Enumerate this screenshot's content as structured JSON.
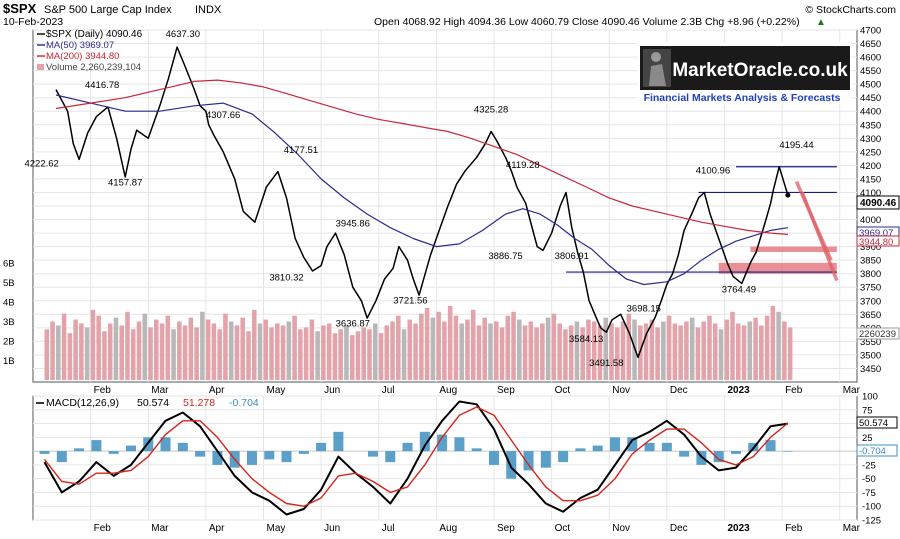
{
  "header": {
    "symbol": "$SPX",
    "name": "S&P 500 Large Cap Index",
    "exchange": "INDX",
    "date": "10-Feb-2023",
    "ohlc_text": "Open 4068.92  High 4094.36  Low 4060.79  Close 4090.46  Volume 2.3B  Chg +8.96 (+0.22%)",
    "arrow": "▲",
    "copyright": "© StockCharts.com"
  },
  "logo": {
    "name": "MarketOracle.co.uk",
    "tagline": "Financial Markets Analysis & Forecasts"
  },
  "colors": {
    "price": "#000000",
    "ma50": "#2b2b8c",
    "ma200": "#c8283c",
    "volume": "#e2a4aa",
    "volume_up": "#b8b8b8",
    "macd_line": "#000000",
    "macd_signal": "#d4251f",
    "macd_hist": "#3d8fc0",
    "zone_fill": "#e06068",
    "levels": "#1a1a8c",
    "grid": "#e6e6e6"
  },
  "chart_data": [
    {
      "type": "line",
      "panel": "price",
      "title": "$SPX (Daily) 4090.46",
      "legend": [
        {
          "key": "price",
          "text": "$SPX (Daily) 4090.46"
        },
        {
          "key": "ma50",
          "text": "MA(50) 3969.07"
        },
        {
          "key": "ma200",
          "text": "MA(200) 3944.80"
        },
        {
          "key": "volume",
          "text": "Volume 2,260,239,104"
        }
      ],
      "legend_position": "top-left",
      "x_labels": [
        "Feb",
        "Mar",
        "Apr",
        "May",
        "Jun",
        "Jul",
        "Aug",
        "Sep",
        "Oct",
        "Nov",
        "Dec",
        "2023",
        "Feb",
        "Mar"
      ],
      "x_label_month_index": [
        1,
        2,
        3,
        4,
        5,
        6,
        7,
        8,
        9,
        10,
        11,
        12,
        13,
        14
      ],
      "y_range": [
        3400,
        4700
      ],
      "y_ticks": [
        3450,
        3500,
        3550,
        3600,
        3650,
        3700,
        3750,
        3800,
        3850,
        3900,
        3950,
        4000,
        4050,
        4100,
        4150,
        4200,
        4250,
        4300,
        4350,
        4400,
        4450,
        4500,
        4550,
        4600,
        4650,
        4700
      ],
      "volume_ticks": [
        "1B",
        "2B",
        "3B",
        "4B",
        "5B",
        "6B"
      ],
      "last_values": {
        "close": "4090.46",
        "ma50": "3969.07",
        "ma200": "3944.80",
        "volume": "2260239"
      },
      "grid": true,
      "series": [
        {
          "name": "$SPX (Daily)",
          "key": "price",
          "x": [
            0.4,
            0.6,
            0.7,
            0.8,
            0.95,
            1.1,
            1.3,
            1.45,
            1.6,
            1.7,
            1.8,
            2.0,
            2.2,
            2.35,
            2.5,
            2.65,
            2.8,
            2.9,
            3.0,
            3.05,
            3.15,
            3.3,
            3.5,
            3.65,
            3.85,
            4.05,
            4.25,
            4.4,
            4.55,
            4.7,
            4.85,
            5.0,
            5.1,
            5.25,
            5.4,
            5.55,
            5.7,
            5.8,
            5.95,
            6.1,
            6.25,
            6.35,
            6.5,
            6.6,
            6.7,
            6.9,
            7.05,
            7.2,
            7.35,
            7.5,
            7.7,
            7.85,
            7.95,
            8.05,
            8.2,
            8.3,
            8.4,
            8.55,
            8.65,
            8.75,
            8.85,
            9.0,
            9.15,
            9.25,
            9.35,
            9.45,
            9.55,
            9.65,
            9.75,
            9.85,
            9.95,
            10.05,
            10.2,
            10.35,
            10.5,
            10.65,
            10.8,
            10.9,
            11.0,
            11.1,
            11.2,
            11.3,
            11.45,
            11.55,
            11.65,
            11.75,
            11.85,
            11.95,
            12.05,
            12.15,
            12.3,
            12.45,
            12.55,
            12.65,
            12.72,
            12.8,
            12.85,
            12.95,
            13.1
          ],
          "y": [
            4480,
            4400,
            4280,
            4222,
            4320,
            4380,
            4416,
            4300,
            4157,
            4260,
            4330,
            4300,
            4420,
            4520,
            4637,
            4560,
            4480,
            4420,
            4400,
            4350,
            4307,
            4250,
            4150,
            4030,
            3990,
            4120,
            4177,
            4080,
            3930,
            3860,
            3810,
            3830,
            3900,
            3950,
            3870,
            3750,
            3700,
            3636,
            3700,
            3780,
            3820,
            3900,
            3850,
            3780,
            3721,
            3870,
            3960,
            4050,
            4130,
            4180,
            4230,
            4280,
            4325,
            4290,
            4230,
            4180,
            4119,
            4060,
            3980,
            3900,
            3886,
            3950,
            4050,
            4100,
            3970,
            3880,
            3806,
            3700,
            3650,
            3600,
            3584,
            3630,
            3650,
            3580,
            3491,
            3580,
            3640,
            3698,
            3760,
            3800,
            3870,
            3960,
            4030,
            4080,
            4100,
            4020,
            3960,
            3900,
            3840,
            3790,
            3764,
            3840,
            3880,
            3950,
            4000,
            4060,
            4110,
            4195,
            4090
          ]
        },
        {
          "name": "MA(50)",
          "key": "ma50",
          "x": [
            0.4,
            1.0,
            1.6,
            2.2,
            2.8,
            3.3,
            3.8,
            4.2,
            4.6,
            5.0,
            5.4,
            5.8,
            6.2,
            6.6,
            7.0,
            7.4,
            7.8,
            8.2,
            8.5,
            8.8,
            9.1,
            9.4,
            9.7,
            10.0,
            10.3,
            10.6,
            11.0,
            11.3,
            11.6,
            11.9,
            12.2,
            12.5,
            12.8,
            13.1
          ],
          "y": [
            4460,
            4430,
            4400,
            4400,
            4420,
            4430,
            4390,
            4320,
            4240,
            4150,
            4080,
            4020,
            3970,
            3930,
            3900,
            3910,
            3960,
            4020,
            4040,
            4020,
            3980,
            3930,
            3890,
            3830,
            3780,
            3760,
            3770,
            3800,
            3850,
            3890,
            3920,
            3940,
            3960,
            3970
          ]
        },
        {
          "name": "MA(200)",
          "key": "ma200",
          "x": [
            0.4,
            1.0,
            1.6,
            2.2,
            2.8,
            3.2,
            3.6,
            4.0,
            4.4,
            4.8,
            5.2,
            5.6,
            6.0,
            6.4,
            6.8,
            7.2,
            7.6,
            8.0,
            8.4,
            8.8,
            9.2,
            9.6,
            10.0,
            10.4,
            10.8,
            11.2,
            11.6,
            12.0,
            12.4,
            12.8,
            13.1
          ],
          "y": [
            4410,
            4430,
            4450,
            4480,
            4510,
            4515,
            4505,
            4490,
            4465,
            4440,
            4415,
            4390,
            4370,
            4355,
            4340,
            4325,
            4300,
            4270,
            4240,
            4200,
            4160,
            4120,
            4080,
            4050,
            4030,
            4010,
            3990,
            3975,
            3960,
            3950,
            3945
          ]
        }
      ],
      "volume_bars": {
        "month_start": 0.2,
        "month_end": 13.2,
        "count": 130,
        "levels_B": [
          2.6,
          3.0,
          2.8,
          3.4,
          2.4,
          3.1,
          2.9,
          2.7,
          3.6,
          3.3,
          2.5,
          2.9,
          3.2,
          2.8,
          3.5,
          2.6,
          3.0,
          3.4,
          2.7,
          3.1,
          2.9,
          3.3,
          2.6,
          3.0,
          2.8,
          3.2,
          2.7,
          3.5,
          3.1,
          2.9,
          2.6,
          3.4,
          3.0,
          2.8,
          3.2,
          2.5,
          3.6,
          2.9,
          3.1,
          2.7,
          2.9,
          2.8,
          3.0,
          3.3,
          2.6,
          2.7,
          3.1,
          2.5,
          2.8,
          2.9,
          2.4,
          2.6,
          2.8,
          2.3,
          2.5,
          2.7,
          2.6,
          2.9,
          2.4,
          2.8,
          3.0,
          3.3,
          2.6,
          3.1,
          2.9,
          3.4,
          3.7,
          3.2,
          3.5,
          3.0,
          3.8,
          3.3,
          2.9,
          3.1,
          3.6,
          2.8,
          3.2,
          2.9,
          3.0,
          2.7,
          3.3,
          3.5,
          3.1,
          2.8,
          3.0,
          2.7,
          2.9,
          3.2,
          3.4,
          2.9,
          2.6,
          2.8,
          3.0,
          2.7,
          3.1,
          3.0,
          2.8,
          3.2,
          2.9,
          2.7,
          3.0,
          3.4,
          3.1,
          2.8,
          2.9,
          3.1,
          2.7,
          3.0,
          3.3,
          2.9,
          2.8,
          3.0,
          3.2,
          2.7,
          3.0,
          3.3,
          2.9,
          2.6,
          3.1,
          3.5,
          2.9,
          2.8,
          3.0,
          3.2,
          2.8,
          3.3,
          3.8,
          3.5,
          3.0,
          2.7
        ]
      },
      "annotations": [
        {
          "text": "4637.30",
          "x": 2.6,
          "y": 4675
        },
        {
          "text": "4416.78",
          "x": 1.2,
          "y": 4485
        },
        {
          "text": "4222.62",
          "x": 0.15,
          "y": 4195
        },
        {
          "text": "4157.87",
          "x": 1.6,
          "y": 4125
        },
        {
          "text": "4307.66",
          "x": 3.3,
          "y": 4375
        },
        {
          "text": "4177.51",
          "x": 4.65,
          "y": 4245
        },
        {
          "text": "3945.86",
          "x": 5.55,
          "y": 3975
        },
        {
          "text": "3810.32",
          "x": 4.4,
          "y": 3775
        },
        {
          "text": "3636.87",
          "x": 5.55,
          "y": 3605
        },
        {
          "text": "3721.56",
          "x": 6.55,
          "y": 3690
        },
        {
          "text": "4325.28",
          "x": 7.95,
          "y": 4395
        },
        {
          "text": "4119.28",
          "x": 8.5,
          "y": 4190
        },
        {
          "text": "3886.75",
          "x": 8.2,
          "y": 3855
        },
        {
          "text": "3806.91",
          "x": 9.35,
          "y": 3855
        },
        {
          "text": "3584.13",
          "x": 9.6,
          "y": 3548
        },
        {
          "text": "3491.58",
          "x": 9.95,
          "y": 3460
        },
        {
          "text": "3698.15",
          "x": 10.6,
          "y": 3660
        },
        {
          "text": "4100.96",
          "x": 11.8,
          "y": 4170
        },
        {
          "text": "3764.49",
          "x": 12.25,
          "y": 3730
        },
        {
          "text": "4195.44",
          "x": 13.25,
          "y": 4265
        }
      ],
      "levels": [
        {
          "from": 12.2,
          "to": 13.95,
          "y": 4195
        },
        {
          "from": 11.55,
          "to": 13.95,
          "y": 4100
        },
        {
          "from": 9.25,
          "to": 13.95,
          "y": 3806
        }
      ],
      "zones": [
        {
          "from": 12.45,
          "to": 13.95,
          "y1": 3880,
          "y2": 3900
        },
        {
          "from": 11.9,
          "to": 13.95,
          "y1": 3800,
          "y2": 3840
        }
      ],
      "arrows": [
        {
          "x1": 13.25,
          "y1": 4140,
          "x2": 13.85,
          "y2": 3850
        },
        {
          "x1": 13.35,
          "y1": 4100,
          "x2": 13.95,
          "y2": 3775
        }
      ]
    },
    {
      "type": "line",
      "panel": "macd",
      "title": "MACD(12,26,9) 50.574, 51.278, -0.704",
      "legend": [
        {
          "key": "label",
          "text": "MACD(12,26,9)"
        },
        {
          "key": "macd",
          "text": "50.574"
        },
        {
          "key": "signal",
          "text": "51.278"
        },
        {
          "key": "hist",
          "text": "-0.704"
        }
      ],
      "legend_position": "top-left",
      "x_labels": [
        "Feb",
        "Mar",
        "Apr",
        "May",
        "Jun",
        "Jul",
        "Aug",
        "Sep",
        "Oct",
        "Nov",
        "Dec",
        "2023",
        "Feb",
        "Mar"
      ],
      "y_range": [
        -125,
        100
      ],
      "y_ticks": [
        -125,
        -100,
        -75,
        -50,
        -25,
        0,
        25,
        50,
        75,
        100
      ],
      "last_values": {
        "macd": "50.574",
        "hist": "-0.704"
      },
      "grid": true,
      "series": [
        {
          "name": "MACD",
          "key": "macd",
          "x": [
            0.2,
            0.5,
            0.8,
            1.1,
            1.4,
            1.7,
            2.0,
            2.3,
            2.6,
            2.9,
            3.2,
            3.5,
            3.8,
            4.1,
            4.4,
            4.7,
            5.0,
            5.3,
            5.6,
            5.9,
            6.2,
            6.5,
            6.8,
            7.1,
            7.4,
            7.7,
            8.0,
            8.3,
            8.6,
            8.9,
            9.2,
            9.5,
            9.8,
            10.1,
            10.4,
            10.7,
            11.0,
            11.3,
            11.6,
            11.9,
            12.2,
            12.5,
            12.8,
            13.1
          ],
          "y": [
            -20,
            -75,
            -55,
            -20,
            -45,
            -25,
            15,
            55,
            70,
            45,
            0,
            -45,
            -75,
            -90,
            -115,
            -105,
            -70,
            -10,
            -40,
            -65,
            -95,
            -50,
            10,
            55,
            90,
            85,
            40,
            -30,
            -60,
            -95,
            -110,
            -85,
            -70,
            -25,
            20,
            35,
            55,
            30,
            -10,
            -35,
            -30,
            5,
            45,
            50
          ]
        },
        {
          "name": "Signal",
          "key": "signal",
          "x": [
            0.2,
            0.5,
            0.8,
            1.1,
            1.4,
            1.7,
            2.0,
            2.3,
            2.6,
            2.9,
            3.2,
            3.5,
            3.8,
            4.1,
            4.4,
            4.7,
            5.0,
            5.3,
            5.6,
            5.9,
            6.2,
            6.5,
            6.8,
            7.1,
            7.4,
            7.7,
            8.0,
            8.3,
            8.6,
            8.9,
            9.2,
            9.5,
            9.8,
            10.1,
            10.4,
            10.7,
            11.0,
            11.3,
            11.6,
            11.9,
            12.2,
            12.5,
            12.8,
            13.1
          ],
          "y": [
            -15,
            -55,
            -60,
            -40,
            -40,
            -35,
            -10,
            30,
            55,
            55,
            25,
            -15,
            -50,
            -75,
            -95,
            -100,
            -85,
            -45,
            -40,
            -55,
            -75,
            -65,
            -25,
            25,
            65,
            80,
            65,
            20,
            -25,
            -65,
            -90,
            -90,
            -80,
            -50,
            -5,
            20,
            40,
            40,
            15,
            -15,
            -25,
            -10,
            25,
            51
          ]
        }
      ],
      "histogram": {
        "x": [
          0.2,
          0.5,
          0.8,
          1.1,
          1.4,
          1.7,
          2.0,
          2.3,
          2.6,
          2.9,
          3.2,
          3.5,
          3.8,
          4.1,
          4.4,
          4.7,
          5.0,
          5.3,
          5.6,
          5.9,
          6.2,
          6.5,
          6.8,
          7.1,
          7.4,
          7.7,
          8.0,
          8.3,
          8.6,
          8.9,
          9.2,
          9.5,
          9.8,
          10.1,
          10.4,
          10.7,
          11.0,
          11.3,
          11.6,
          11.9,
          12.2,
          12.5,
          12.8,
          13.1
        ],
        "y": [
          -5,
          -20,
          5,
          20,
          -5,
          10,
          25,
          25,
          15,
          -10,
          -25,
          -30,
          -25,
          -15,
          -20,
          -5,
          15,
          35,
          0,
          -10,
          -20,
          15,
          35,
          30,
          25,
          5,
          -25,
          -50,
          -35,
          -30,
          -20,
          5,
          10,
          25,
          25,
          15,
          15,
          -10,
          -25,
          -20,
          -5,
          15,
          20,
          -1
        ]
      }
    }
  ]
}
